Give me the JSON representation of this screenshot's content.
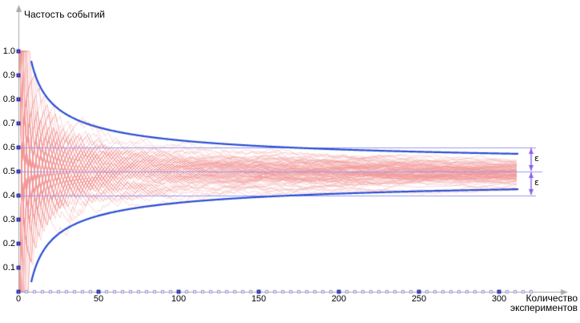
{
  "axes": {
    "y_title": "Частость событий",
    "x_title": "Количество\nэкспериментов"
  },
  "chart_data": {
    "type": "line",
    "title": "",
    "ylabel": "Частость событий",
    "xlabel": "Количество экспериментов",
    "xlim": [
      0,
      340
    ],
    "ylim": [
      0,
      1.1
    ],
    "x_major_ticks": [
      0,
      50,
      100,
      150,
      200,
      250,
      300
    ],
    "x_minor_tick_step": 5,
    "x_minor_tick_max": 320,
    "y_ticks": [
      0.1,
      0.2,
      0.3,
      0.4,
      0.5,
      0.6,
      0.7,
      0.8,
      0.9,
      1.0
    ],
    "grid": false,
    "legend": "none",
    "reference_lines": [
      {
        "y": 0.6,
        "n_end": 323
      },
      {
        "y": 0.5,
        "n_end": 327
      },
      {
        "y": 0.4,
        "n_end": 323
      }
    ],
    "envelope": {
      "description": "confidence envelope 0.5 ± 1.3/sqrt(n)",
      "center": 0.5,
      "coefficient": 1.3,
      "n_start": 8,
      "n_end": 312
    },
    "traces": {
      "description": "running relative frequency of simulated Bernoulli(0.5) experiments",
      "count": 100,
      "n_max": 311,
      "probability": 0.5,
      "seed": 9
    },
    "epsilon_annotations": [
      {
        "from_y": 0.6,
        "to_y": 0.5,
        "label": "ε",
        "arrow_n": 320
      },
      {
        "from_y": 0.5,
        "to_y": 0.4,
        "label": "ε",
        "arrow_n": 320
      }
    ],
    "colors": {
      "trace_pink": "rgba(242,150,150,0.42)",
      "envelope_blue": "#2b4ed2",
      "reference_purple": "#9a9af0",
      "epsilon_arrow": "#8b5fe6",
      "axis_gray": "#a9a9a9",
      "major_tick_border": "#1a1aa6",
      "minor_tick_border": "#9b9bdd",
      "tick_fill": "#ffffff",
      "text": "#000000"
    }
  }
}
